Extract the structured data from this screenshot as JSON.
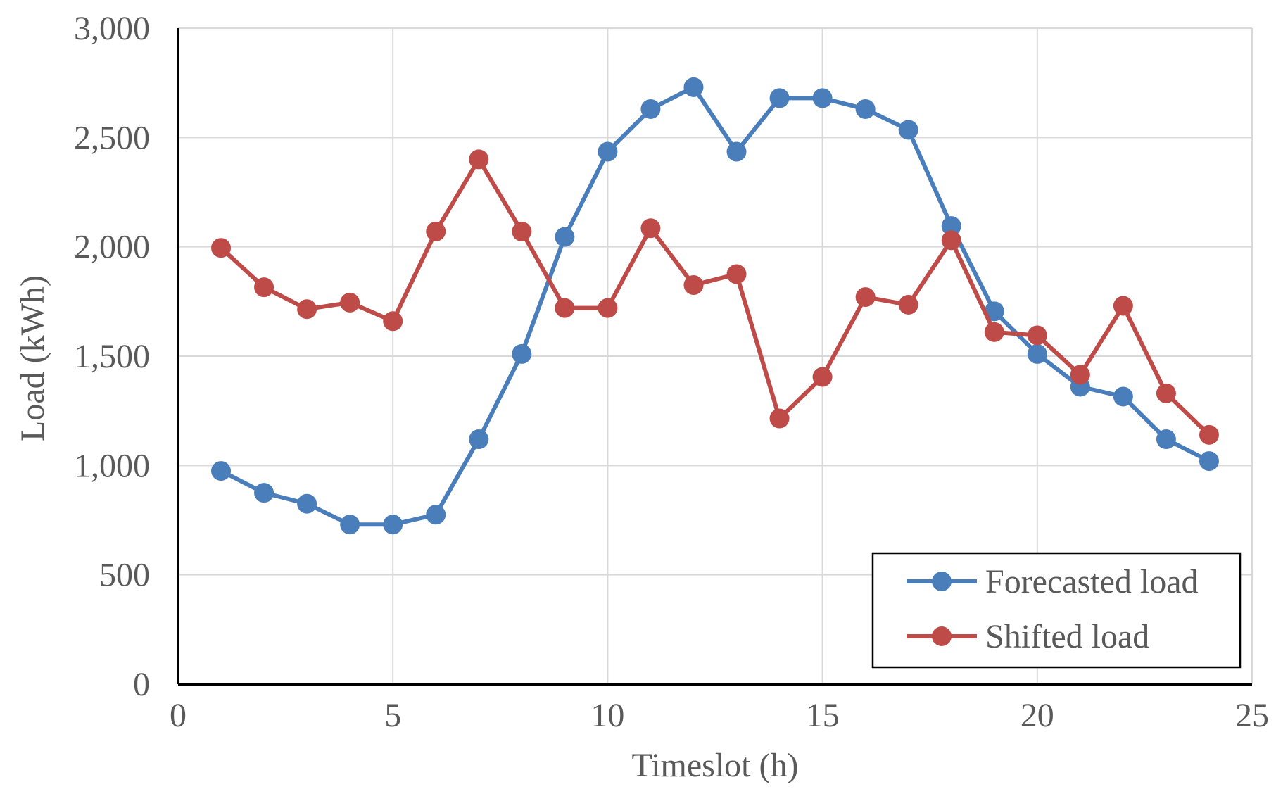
{
  "chart_data": {
    "type": "line",
    "title": "",
    "xlabel": "Timeslot (h)",
    "ylabel": "Load (kWh)",
    "xlim": [
      0,
      25
    ],
    "ylim": [
      0,
      3000
    ],
    "xticks": [
      0,
      5,
      10,
      15,
      20,
      25
    ],
    "yticks": [
      0,
      500,
      1000,
      1500,
      2000,
      2500,
      3000
    ],
    "xtick_labels": [
      "0",
      "5",
      "10",
      "15",
      "20",
      "25"
    ],
    "ytick_labels": [
      "0",
      "500",
      "1,000",
      "1,500",
      "2,000",
      "2,500",
      "3,000"
    ],
    "grid": true,
    "legend_position": "bottom-right",
    "x": [
      1,
      2,
      3,
      4,
      5,
      6,
      7,
      8,
      9,
      10,
      11,
      12,
      13,
      14,
      15,
      16,
      17,
      18,
      19,
      20,
      21,
      22,
      23,
      24
    ],
    "series": [
      {
        "name": "Forecasted load",
        "color": "#4a7ebb",
        "values": [
          975,
          875,
          825,
          730,
          730,
          775,
          1120,
          1510,
          2045,
          2435,
          2630,
          2730,
          2435,
          2680,
          2680,
          2630,
          2535,
          2095,
          1705,
          1510,
          1360,
          1315,
          1120,
          1020
        ]
      },
      {
        "name": "Shifted load",
        "color": "#be4b48",
        "values": [
          1995,
          1815,
          1715,
          1745,
          1660,
          2070,
          2400,
          2070,
          1720,
          1720,
          2085,
          1825,
          1875,
          1215,
          1405,
          1770,
          1735,
          2030,
          1610,
          1595,
          1415,
          1730,
          1330,
          1140
        ]
      }
    ]
  }
}
